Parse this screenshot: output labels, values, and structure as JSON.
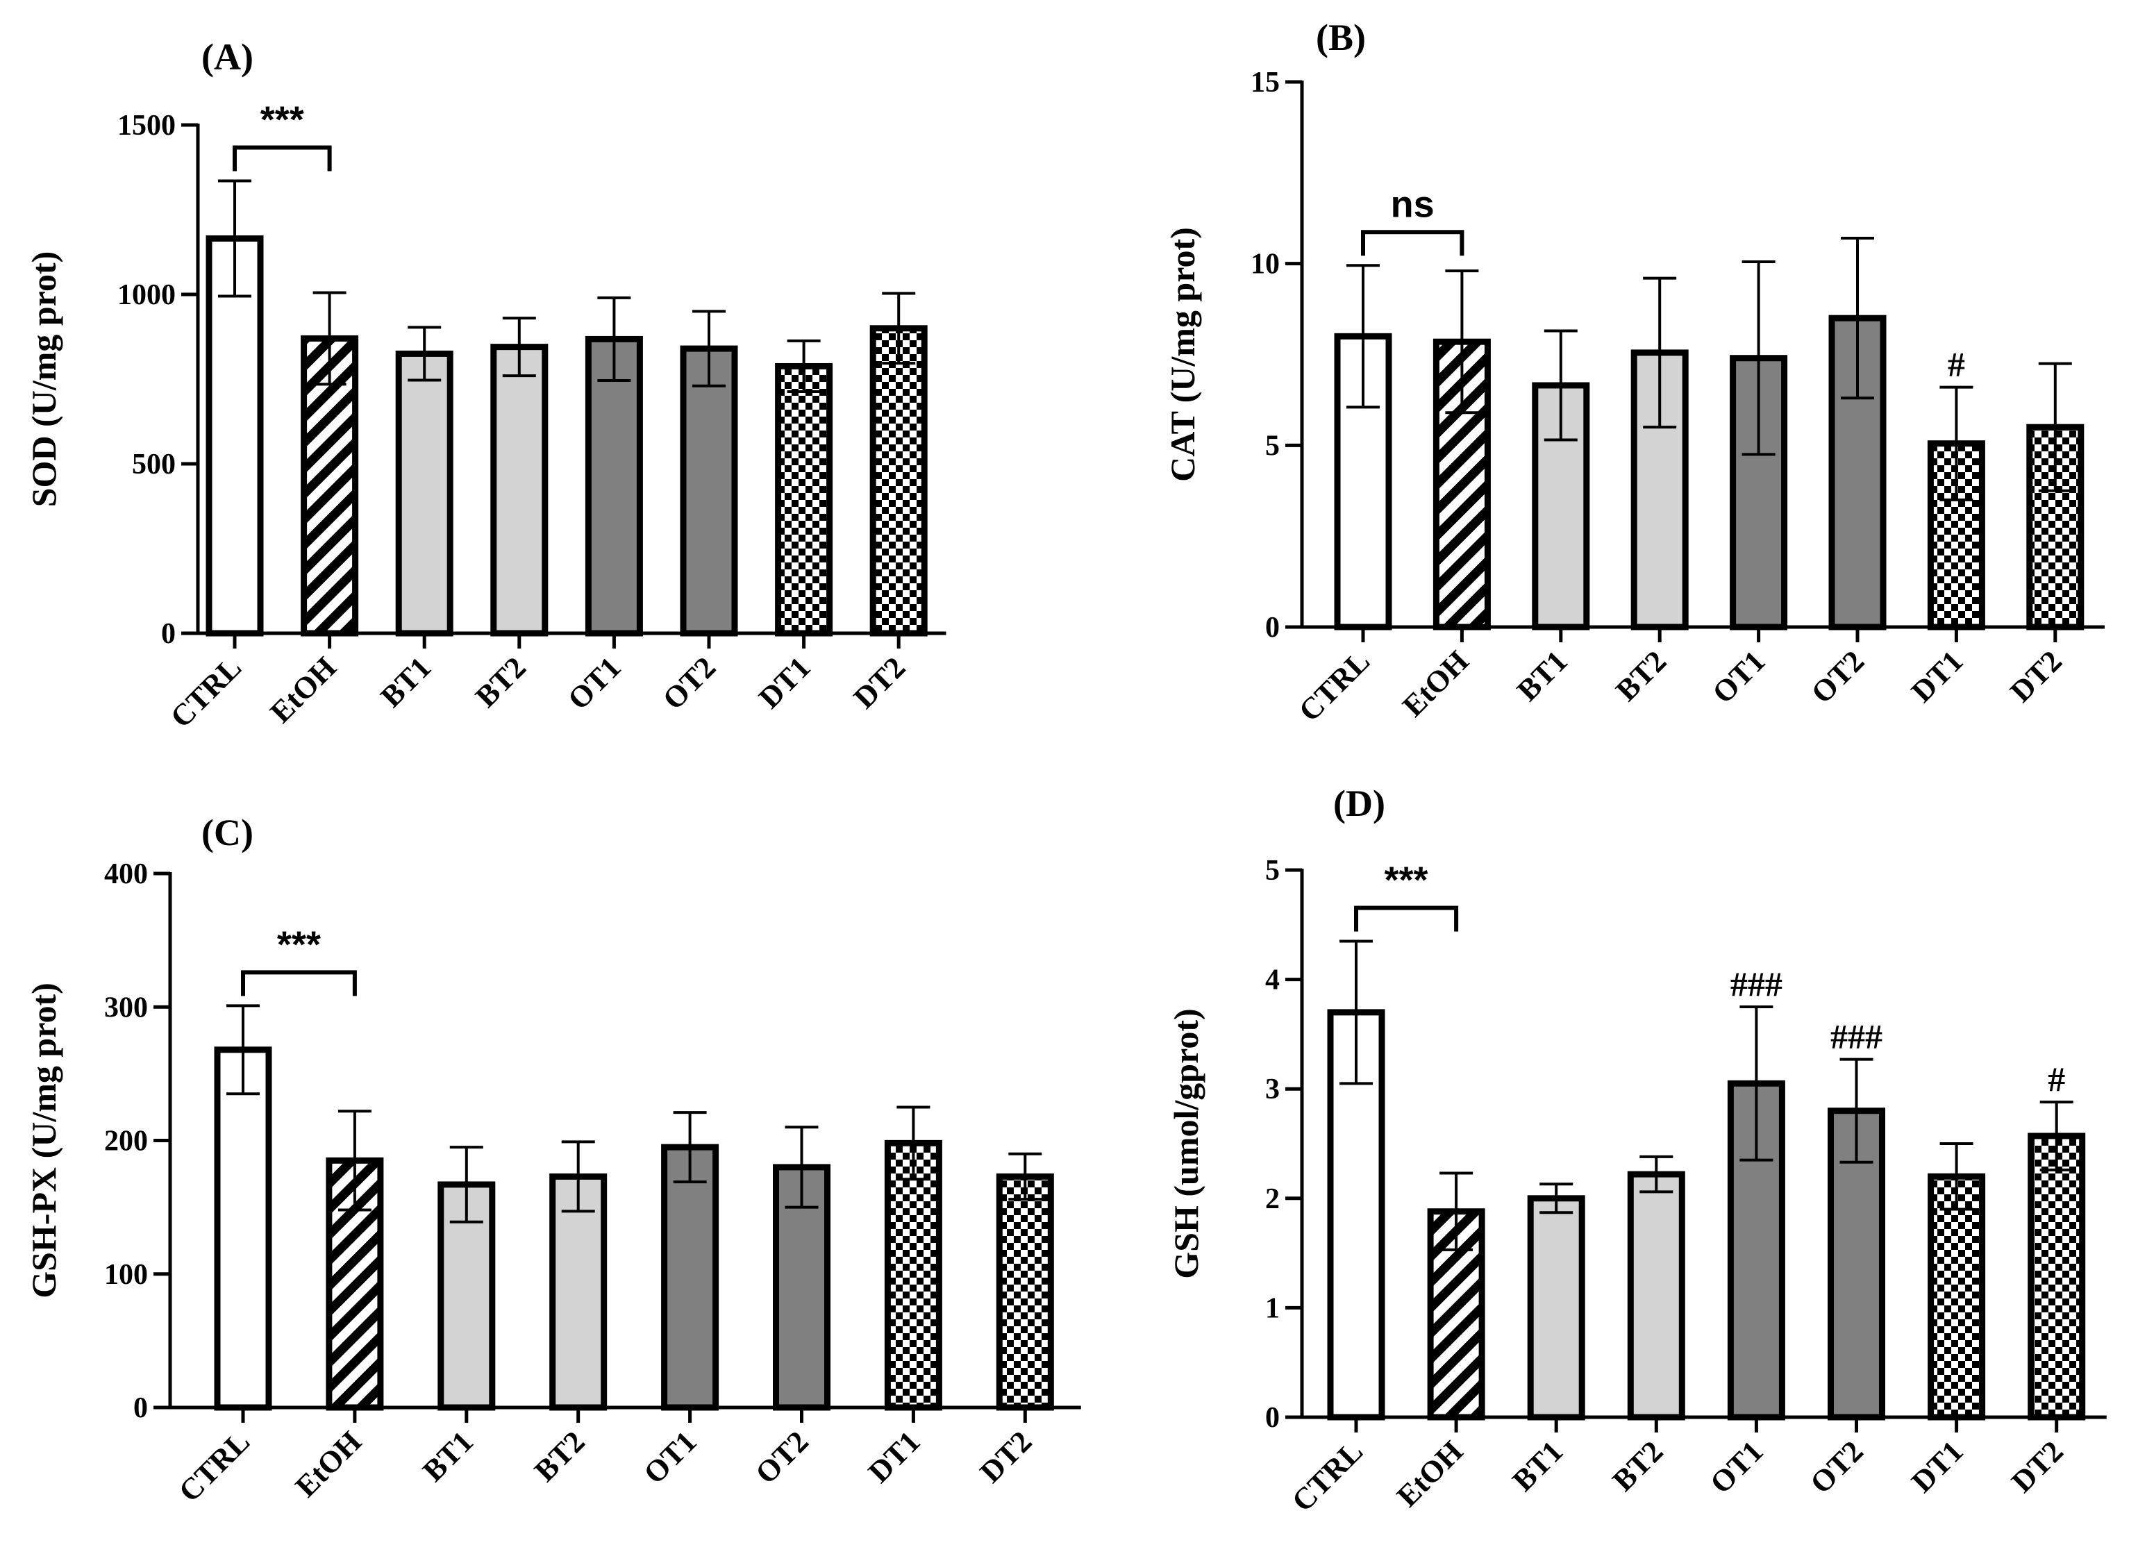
{
  "chart_data": [
    {
      "type": "bar",
      "panel": "(A)",
      "ylabel": "SOD (U/mg prot)",
      "ylim": [
        0,
        1500
      ],
      "yticks": [
        "0",
        "500",
        "1000",
        "1500"
      ],
      "categories": [
        "CTRL",
        "EtOH",
        "BT1",
        "BT2",
        "OT1",
        "OT2",
        "DT1",
        "DT2"
      ],
      "values": [
        1165,
        870,
        825,
        845,
        868,
        840,
        788,
        900
      ],
      "errors": [
        170,
        135,
        78,
        85,
        122,
        110,
        75,
        103
      ],
      "significance": [
        {
          "from": "CTRL",
          "to": "EtOH",
          "label": "***"
        }
      ],
      "markers": []
    },
    {
      "type": "bar",
      "panel": "(B)",
      "ylabel": "CAT (U/mg prot)",
      "ylim": [
        0,
        15
      ],
      "yticks": [
        "0",
        "5",
        "10",
        "15"
      ],
      "categories": [
        "CTRL",
        "EtOH",
        "BT1",
        "BT2",
        "OT1",
        "OT2",
        "DT1",
        "DT2"
      ],
      "values": [
        8.0,
        7.85,
        6.65,
        7.55,
        7.4,
        8.5,
        5.05,
        5.5
      ],
      "errors": [
        1.95,
        1.95,
        1.5,
        2.05,
        2.65,
        2.2,
        1.55,
        1.75
      ],
      "significance": [
        {
          "from": "CTRL",
          "to": "EtOH",
          "label": "ns"
        }
      ],
      "markers": [
        {
          "category": "DT1",
          "label": "#"
        }
      ]
    },
    {
      "type": "bar",
      "panel": "(C)",
      "ylabel": "GSH-PX (U/mg prot)",
      "ylim": [
        0,
        400
      ],
      "yticks": [
        "0",
        "100",
        "200",
        "300",
        "400"
      ],
      "categories": [
        "CTRL",
        "EtOH",
        "BT1",
        "BT2",
        "OT1",
        "OT2",
        "DT1",
        "DT2"
      ],
      "values": [
        268,
        185,
        167,
        173,
        195,
        180,
        198,
        173
      ],
      "errors": [
        33,
        37,
        28,
        26,
        26,
        30,
        27,
        17
      ],
      "significance": [
        {
          "from": "CTRL",
          "to": "EtOH",
          "label": "***"
        }
      ],
      "markers": []
    },
    {
      "type": "bar",
      "panel": "(D)",
      "ylabel": "GSH (umol/gprot)",
      "ylim": [
        0,
        5
      ],
      "yticks": [
        "0",
        "1",
        "2",
        "3",
        "4",
        "5"
      ],
      "categories": [
        "CTRL",
        "EtOH",
        "BT1",
        "BT2",
        "OT1",
        "OT2",
        "DT1",
        "DT2"
      ],
      "values": [
        3.7,
        1.88,
        2.0,
        2.22,
        3.05,
        2.8,
        2.2,
        2.57
      ],
      "errors": [
        0.65,
        0.35,
        0.13,
        0.16,
        0.7,
        0.47,
        0.3,
        0.31
      ],
      "significance": [
        {
          "from": "CTRL",
          "to": "EtOH",
          "label": "***"
        }
      ],
      "markers": [
        {
          "category": "OT1",
          "label": "###"
        },
        {
          "category": "OT2",
          "label": "###"
        },
        {
          "category": "DT2",
          "label": "#"
        }
      ]
    }
  ],
  "fills": {
    "CTRL": "white",
    "EtOH": "hatch",
    "BT1": "#d3d3d3",
    "BT2": "#d3d3d3",
    "OT1": "#808080",
    "OT2": "#808080",
    "DT1": "checker",
    "DT2": "checker"
  }
}
